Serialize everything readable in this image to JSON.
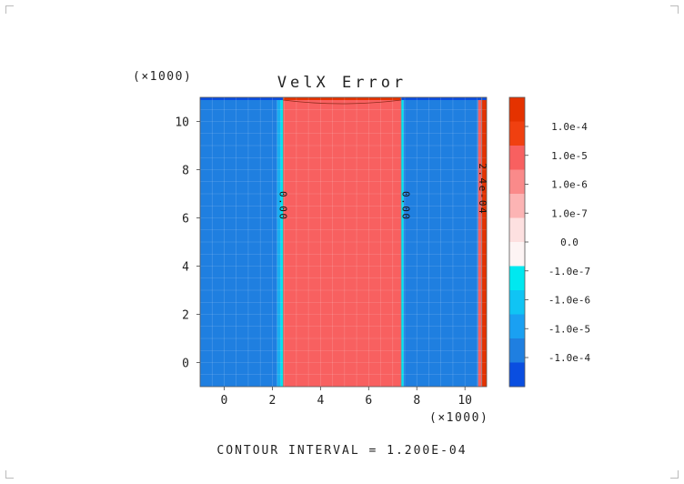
{
  "chart_data": {
    "type": "heatmap",
    "title": "VelX Error",
    "x_multiplier": "(×1000)",
    "y_multiplier": "(×1000)",
    "xlim": [
      -1.0,
      10.9
    ],
    "ylim": [
      -1.0,
      11.0
    ],
    "x_ticks": [
      {
        "value": 0,
        "label": "0"
      },
      {
        "value": 2,
        "label": "2"
      },
      {
        "value": 4,
        "label": "4"
      },
      {
        "value": 6,
        "label": "6"
      },
      {
        "value": 8,
        "label": "8"
      },
      {
        "value": 10,
        "label": "10"
      }
    ],
    "y_ticks": [
      {
        "value": 0,
        "label": "0"
      },
      {
        "value": 2,
        "label": "2"
      },
      {
        "value": 4,
        "label": "4"
      },
      {
        "value": 6,
        "label": "6"
      },
      {
        "value": 8,
        "label": "8"
      },
      {
        "value": 10,
        "label": "10"
      }
    ],
    "bands": [
      {
        "x0": -1.0,
        "x1": 2.2,
        "level": "-1.0e-5",
        "color": "#1f7fe0"
      },
      {
        "x0": 2.2,
        "x1": 2.35,
        "level": "-1.0e-6",
        "color": "#1aaef0"
      },
      {
        "x0": 2.35,
        "x1": 2.45,
        "level": "-1.0e-7",
        "color": "#00e5ee"
      },
      {
        "x0": 2.45,
        "x1": 7.35,
        "level": "1.0e-5",
        "color": "#f86060"
      },
      {
        "x0": 7.35,
        "x1": 7.45,
        "level": "-1.0e-7",
        "color": "#00e5ee"
      },
      {
        "x0": 7.45,
        "x1": 10.55,
        "level": "-1.0e-5",
        "color": "#1f7fe0"
      },
      {
        "x0": 10.55,
        "x1": 10.7,
        "level": "1.0e-5",
        "color": "#f86060"
      },
      {
        "x0": 10.7,
        "x1": 10.9,
        "level": "1.0e-4",
        "color": "#e53200"
      }
    ],
    "top_edge_bands": [
      {
        "x0": -1.0,
        "x1": 2.45,
        "level": "-1.0e-4",
        "color": "#0a4ee0"
      },
      {
        "x0": 2.45,
        "x1": 7.35,
        "level": "1.0e-4",
        "color": "#e53200"
      },
      {
        "x0": 7.35,
        "x1": 10.9,
        "level": "-1.0e-4",
        "color": "#0a4ee0"
      }
    ],
    "contour_labels": [
      {
        "x": 2.3,
        "y": 6.5,
        "text": "0.00"
      },
      {
        "x": 7.4,
        "y": 6.5,
        "text": "0.00"
      },
      {
        "x": 10.6,
        "y": 7.2,
        "text": "2.4e-04"
      }
    ],
    "colorbar": {
      "levels": [
        {
          "label": "1.0e-4",
          "color": "#f04010"
        },
        {
          "label": "1.0e-5",
          "color": "#f86060"
        },
        {
          "label": "1.0e-6",
          "color": "#fa8a8a"
        },
        {
          "label": "1.0e-7",
          "color": "#fcb4b4"
        },
        {
          "label": "0.0",
          "color": "#fde0e0"
        },
        {
          "label": "-1.0e-7",
          "color": "#fdf4f4"
        },
        {
          "label": "-1.0e-6",
          "color": "#00e8f0"
        },
        {
          "label": "-1.0e-5",
          "color": "#10c4f4"
        },
        {
          "label": "-1.0e-4",
          "color": "#1aa0f2"
        }
      ],
      "swatches": [
        "#e53200",
        "#f04010",
        "#f86060",
        "#fa8a8a",
        "#fcb4b4",
        "#fde0e0",
        "#fdf4f4",
        "#00e8f0",
        "#10c4f4",
        "#1aa0f2",
        "#1f7fe0",
        "#0a4ee0"
      ]
    },
    "footer": "CONTOUR INTERVAL = 1.200E-04"
  }
}
